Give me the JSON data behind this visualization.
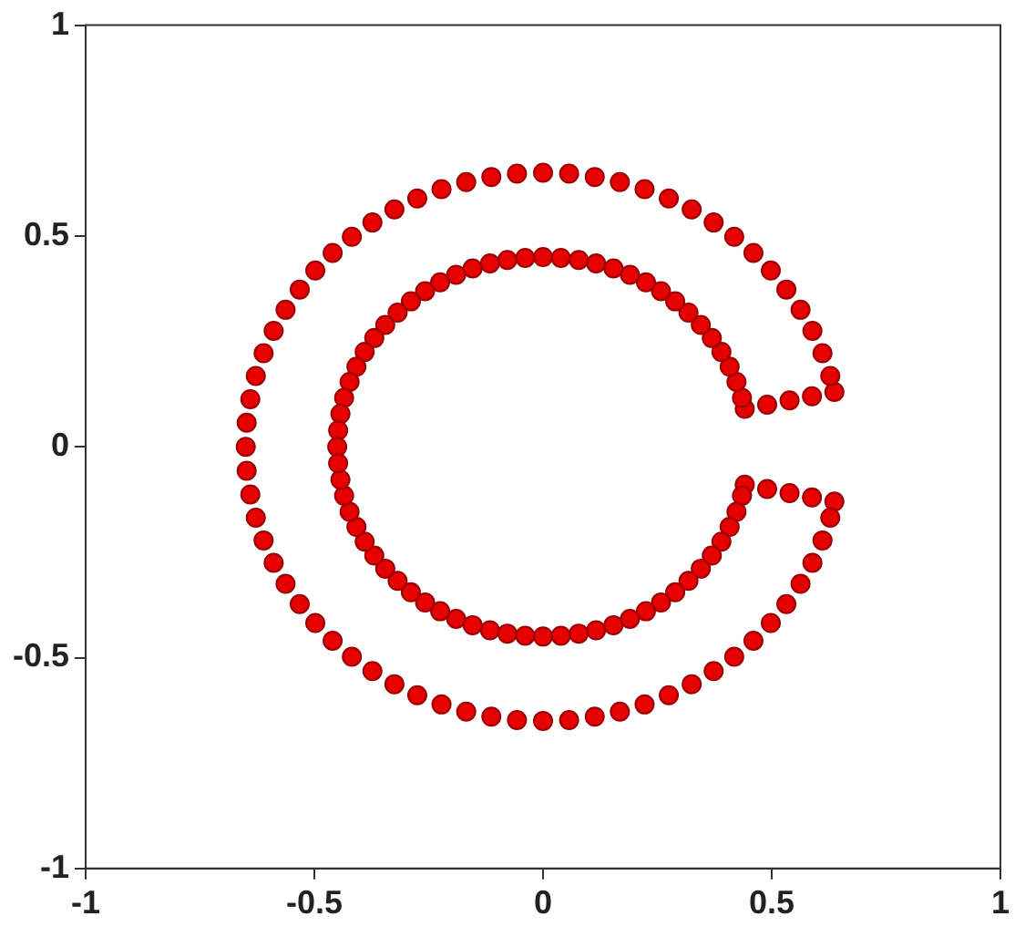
{
  "chart_data": {
    "type": "scatter",
    "marker": "circle",
    "grid": false,
    "legend": false,
    "xlim": [
      -1,
      1
    ],
    "ylim": [
      -1,
      1
    ],
    "xticks": [
      -1,
      -0.5,
      0,
      0.5,
      1
    ],
    "yticks": [
      -1,
      -0.5,
      0,
      0.5,
      1
    ],
    "series": [
      {
        "color": "#e60000",
        "x": [
          0.637,
          0.628,
          0.611,
          0.589,
          0.563,
          0.532,
          0.498,
          0.46,
          0.418,
          0.373,
          0.325,
          0.275,
          0.222,
          0.168,
          0.113,
          0.057,
          0,
          -0.057,
          -0.113,
          -0.168,
          -0.222,
          -0.275,
          -0.325,
          -0.373,
          -0.418,
          -0.46,
          -0.498,
          -0.532,
          -0.563,
          -0.589,
          -0.611,
          -0.628,
          -0.64,
          -0.648,
          -0.65,
          0.637,
          0.628,
          0.611,
          0.589,
          0.563,
          0.532,
          0.498,
          0.46,
          0.418,
          0.373,
          0.325,
          0.275,
          0.222,
          0.168,
          0.113,
          0.057,
          0,
          -0.057,
          -0.113,
          -0.168,
          -0.222,
          -0.275,
          -0.325,
          -0.373,
          -0.418,
          -0.46,
          -0.498,
          -0.532,
          -0.563,
          -0.589,
          -0.611,
          -0.628,
          -0.64,
          -0.648,
          0.441,
          0.435,
          0.423,
          0.408,
          0.39,
          0.369,
          0.345,
          0.318,
          0.289,
          0.258,
          0.225,
          0.19,
          0.154,
          0.116,
          0.078,
          0.039,
          0,
          -0.039,
          -0.078,
          -0.116,
          -0.154,
          -0.19,
          -0.225,
          -0.258,
          -0.289,
          -0.318,
          -0.345,
          -0.369,
          -0.39,
          -0.408,
          -0.423,
          -0.435,
          -0.443,
          -0.448,
          -0.45,
          0.441,
          0.435,
          0.423,
          0.408,
          0.39,
          0.369,
          0.345,
          0.318,
          0.289,
          0.258,
          0.225,
          0.19,
          0.154,
          0.116,
          0.078,
          0.039,
          0,
          -0.039,
          -0.078,
          -0.116,
          -0.154,
          -0.19,
          -0.225,
          -0.258,
          -0.289,
          -0.318,
          -0.345,
          -0.369,
          -0.39,
          -0.408,
          -0.423,
          -0.435,
          -0.443,
          -0.448,
          0.49,
          0.539,
          0.588,
          0.49,
          0.539,
          0.588
        ],
        "values": [
          0.13,
          0.168,
          0.222,
          0.275,
          0.325,
          0.373,
          0.418,
          0.46,
          0.498,
          0.532,
          0.563,
          0.589,
          0.611,
          0.628,
          0.64,
          0.648,
          0.65,
          0.648,
          0.64,
          0.628,
          0.611,
          0.589,
          0.563,
          0.532,
          0.498,
          0.46,
          0.418,
          0.373,
          0.325,
          0.275,
          0.222,
          0.168,
          0.113,
          0.057,
          0,
          -0.13,
          -0.168,
          -0.222,
          -0.275,
          -0.325,
          -0.373,
          -0.418,
          -0.46,
          -0.498,
          -0.532,
          -0.563,
          -0.589,
          -0.611,
          -0.628,
          -0.64,
          -0.648,
          -0.65,
          -0.648,
          -0.64,
          -0.628,
          -0.611,
          -0.589,
          -0.563,
          -0.532,
          -0.498,
          -0.46,
          -0.418,
          -0.373,
          -0.325,
          -0.275,
          -0.222,
          -0.168,
          -0.113,
          -0.057,
          0.09,
          0.116,
          0.154,
          0.19,
          0.225,
          0.258,
          0.289,
          0.318,
          0.345,
          0.369,
          0.39,
          0.408,
          0.423,
          0.435,
          0.443,
          0.448,
          0.45,
          0.448,
          0.443,
          0.435,
          0.423,
          0.408,
          0.39,
          0.369,
          0.345,
          0.318,
          0.289,
          0.258,
          0.225,
          0.19,
          0.154,
          0.116,
          0.078,
          0.039,
          0,
          -0.09,
          -0.116,
          -0.154,
          -0.19,
          -0.225,
          -0.258,
          -0.289,
          -0.318,
          -0.345,
          -0.369,
          -0.39,
          -0.408,
          -0.423,
          -0.435,
          -0.443,
          -0.448,
          -0.45,
          -0.448,
          -0.443,
          -0.435,
          -0.423,
          -0.408,
          -0.39,
          -0.369,
          -0.345,
          -0.318,
          -0.289,
          -0.258,
          -0.225,
          -0.19,
          -0.154,
          -0.116,
          -0.078,
          -0.039,
          0.1,
          0.11,
          0.12,
          -0.1,
          -0.11,
          -0.12
        ]
      }
    ]
  }
}
